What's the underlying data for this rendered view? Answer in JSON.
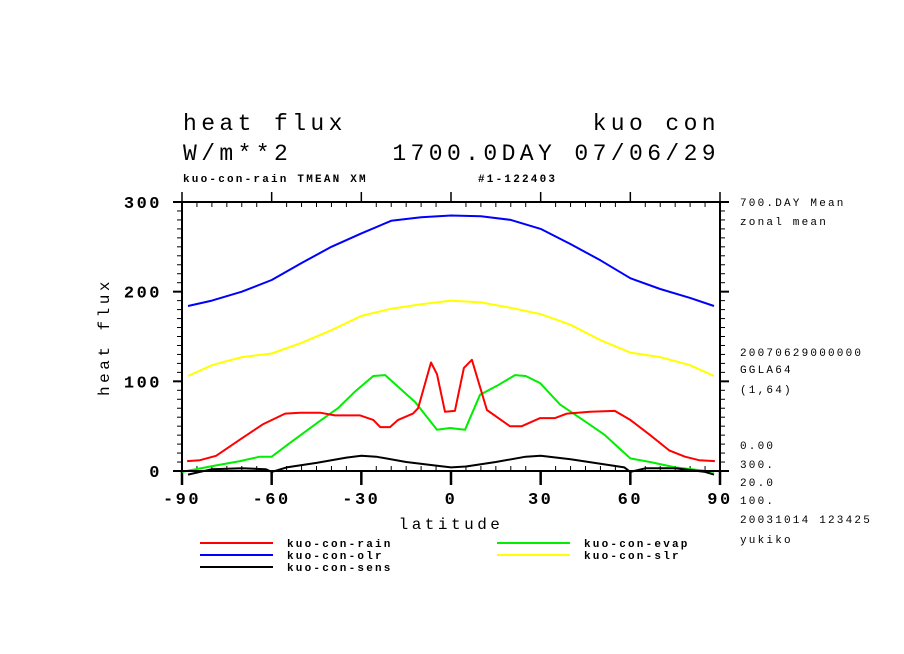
{
  "header": {
    "title_left": "heat flux",
    "title_right": "kuo con",
    "units": "W/m**2",
    "time": "1700.0DAY 07/06/29",
    "subtitle_left": "kuo-con-rain TMEAN XM",
    "subtitle_right": "#1-122403"
  },
  "side_info": [
    "700.DAY Mean",
    "zonal mean",
    "20070629000000",
    "GGLA64",
    "(1,64)",
    "0.00",
    "300.",
    "20.0",
    "100.",
    "20031014 123425",
    "yukiko"
  ],
  "chart_data": {
    "type": "line",
    "title": "heat flux",
    "xlabel": "latitude",
    "ylabel": "heat flux",
    "xlim": [
      -90,
      90
    ],
    "ylim": [
      0,
      300
    ],
    "xticks": [
      -90,
      -60,
      -30,
      0,
      30,
      60,
      90
    ],
    "xtick_labels": [
      "-90",
      "-60",
      "-30",
      "0",
      "30",
      "60",
      "90"
    ],
    "yticks": [
      0,
      100,
      200,
      300
    ],
    "ytick_labels": [
      "0",
      "100",
      "200",
      "300"
    ],
    "grid": false,
    "legend_position": "bottom",
    "series": [
      {
        "name": "kuo-con-rain",
        "color": "#ff0000",
        "x": [
          -88.3,
          -84,
          -78.6,
          -70.6,
          -63,
          -55.5,
          -50.5,
          -43.8,
          -38.8,
          -30.4,
          -26,
          -23.7,
          -20.4,
          -17.7,
          -12.7,
          -11,
          -6.7,
          -4.7,
          -2,
          1.3,
          4.3,
          7,
          12,
          19.7,
          23.7,
          29.8,
          34.8,
          38.8,
          46.5,
          54.8,
          60,
          66.6,
          73,
          78.3,
          83,
          88.3
        ],
        "y": [
          11,
          12,
          17,
          35,
          52,
          64,
          65,
          65,
          62,
          62,
          57,
          49,
          49,
          57,
          64,
          70,
          121,
          108,
          66,
          67,
          115,
          124,
          68,
          50,
          50,
          59,
          59,
          64,
          66,
          67,
          57,
          40,
          23,
          16,
          12,
          11
        ]
      },
      {
        "name": "kuo-con-olr",
        "color": "#0000ff",
        "x": [
          -88,
          -80,
          -70,
          -60,
          -50,
          -40,
          -30,
          -20,
          -10,
          0,
          10,
          20,
          30,
          40,
          50,
          60,
          70,
          80,
          88
        ],
        "y": [
          184,
          190,
          200,
          213,
          232,
          250,
          265,
          279,
          283,
          285,
          284,
          280,
          270,
          253,
          235,
          215,
          203,
          193,
          184
        ]
      },
      {
        "name": "kuo-con-sens",
        "color": "#000000",
        "x": [
          -88,
          -80,
          -70,
          -62,
          -60,
          -55,
          -45,
          -35,
          -30,
          -25,
          -15,
          -5,
          0,
          5,
          15,
          25,
          30,
          40,
          50,
          58,
          60,
          65,
          75,
          85,
          88
        ],
        "y": [
          -4,
          2,
          3,
          2,
          -1,
          4,
          9,
          15,
          17,
          16,
          10,
          6,
          4,
          5,
          10,
          16,
          17,
          13,
          8,
          4,
          -1,
          3,
          3,
          -1,
          -4
        ]
      },
      {
        "name": "kuo-con-evap",
        "color": "#00ee00",
        "x": [
          -90,
          -79,
          -70.6,
          -64,
          -60,
          -54,
          -43.8,
          -37.8,
          -32,
          -26,
          -22,
          -15.4,
          -12,
          -4.7,
          -0.3,
          4.7,
          9.7,
          15.4,
          21.4,
          25,
          29.8,
          36.5,
          45,
          51.5,
          60,
          66.6,
          75,
          83,
          88
        ],
        "y": [
          -1,
          6,
          11,
          16,
          16,
          31,
          56,
          70,
          89,
          106,
          107,
          87,
          77,
          46,
          48,
          46,
          85,
          95,
          107,
          106,
          98,
          74,
          55,
          40,
          14,
          10,
          4,
          1,
          -1
        ]
      },
      {
        "name": "kuo-con-slr",
        "color": "#ffff00",
        "x": [
          -88,
          -80,
          -70,
          -60,
          -50,
          -40,
          -30,
          -20,
          -10,
          0,
          10,
          20,
          30,
          40,
          50,
          60,
          70,
          80,
          88
        ],
        "y": [
          106,
          118,
          127,
          131,
          143,
          157,
          173,
          181,
          186,
          190,
          188,
          182,
          175,
          163,
          146,
          132,
          127,
          118,
          106
        ]
      }
    ]
  }
}
